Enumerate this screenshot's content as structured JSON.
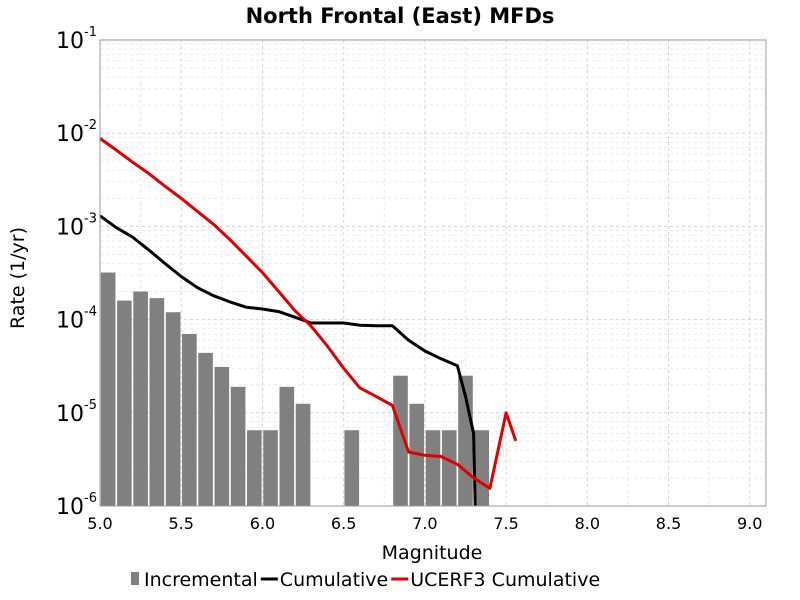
{
  "chart_data": {
    "type": "bar",
    "title": "North Frontal  (East) MFDs",
    "xlabel": "Magnitude",
    "ylabel": "Rate (1/yr)",
    "xlim": [
      5.0,
      9.1
    ],
    "ylim": [
      1e-06,
      0.1
    ],
    "y_scale": "log",
    "grid": true,
    "legend_position": "bottom",
    "x_ticks": [
      "5.0",
      "5.5",
      "6.0",
      "6.5",
      "7.0",
      "7.5",
      "8.0",
      "8.5",
      "9.0"
    ],
    "y_ticks": [
      {
        "base": "10",
        "exp": "-1",
        "value": 0.1
      },
      {
        "base": "10",
        "exp": "-2",
        "value": 0.01
      },
      {
        "base": "10",
        "exp": "-3",
        "value": 0.001
      },
      {
        "base": "10",
        "exp": "-4",
        "value": 0.0001
      },
      {
        "base": "10",
        "exp": "-5",
        "value": 1e-05
      },
      {
        "base": "10",
        "exp": "-6",
        "value": 1e-06
      }
    ],
    "series": [
      {
        "name": "Incremental",
        "kind": "bar",
        "color": "#808080",
        "bar_width": 0.09,
        "x": [
          5.05,
          5.15,
          5.25,
          5.35,
          5.45,
          5.55,
          5.65,
          5.75,
          5.85,
          5.95,
          6.05,
          6.15,
          6.25,
          6.55,
          6.85,
          6.95,
          7.05,
          7.15,
          7.25,
          7.35
        ],
        "y": [
          0.00032,
          0.00016,
          0.0002,
          0.00017,
          0.00012,
          7e-05,
          4.4e-05,
          3.1e-05,
          1.9e-05,
          6.5e-06,
          6.5e-06,
          1.9e-05,
          1.25e-05,
          6.5e-06,
          2.5e-05,
          1.25e-05,
          6.5e-06,
          6.5e-06,
          2.5e-05,
          6.5e-06
        ]
      },
      {
        "name": "Cumulative",
        "kind": "line",
        "color": "#000000",
        "x": [
          5.0,
          5.1,
          5.2,
          5.3,
          5.4,
          5.5,
          5.6,
          5.7,
          5.8,
          5.9,
          6.0,
          6.1,
          6.2,
          6.3,
          6.4,
          6.5,
          6.6,
          6.7,
          6.8,
          6.9,
          7.0,
          7.1,
          7.2,
          7.25,
          7.3,
          7.31
        ],
        "y": [
          0.0013,
          0.00097,
          0.00077,
          0.00056,
          0.0004,
          0.00029,
          0.00022,
          0.00018,
          0.000155,
          0.000136,
          0.00013,
          0.000122,
          0.000106,
          9.2e-05,
          9.2e-05,
          9.2e-05,
          8.7e-05,
          8.6e-05,
          8.6e-05,
          6e-05,
          4.6e-05,
          3.8e-05,
          3.2e-05,
          1.5e-05,
          6e-06,
          1e-06
        ]
      },
      {
        "name": "UCERF3 Cumulative",
        "kind": "line",
        "color": "#e00000",
        "x": [
          5.0,
          5.1,
          5.2,
          5.3,
          5.4,
          5.5,
          5.6,
          5.7,
          5.8,
          5.9,
          6.0,
          6.1,
          6.2,
          6.3,
          6.4,
          6.5,
          6.6,
          6.7,
          6.8,
          6.9,
          7.0,
          7.1,
          7.2,
          7.3,
          7.4,
          7.5,
          7.56
        ],
        "y": [
          0.0088,
          0.0066,
          0.0049,
          0.0037,
          0.0027,
          0.002,
          0.00145,
          0.00105,
          0.00072,
          0.00048,
          0.00032,
          0.0002,
          0.000125,
          8.5e-05,
          5.2e-05,
          3e-05,
          1.85e-05,
          1.5e-05,
          1.2e-05,
          3.8e-06,
          3.5e-06,
          3.4e-06,
          2.8e-06,
          2e-06,
          1.55e-06,
          1e-05,
          5e-06
        ]
      }
    ]
  }
}
